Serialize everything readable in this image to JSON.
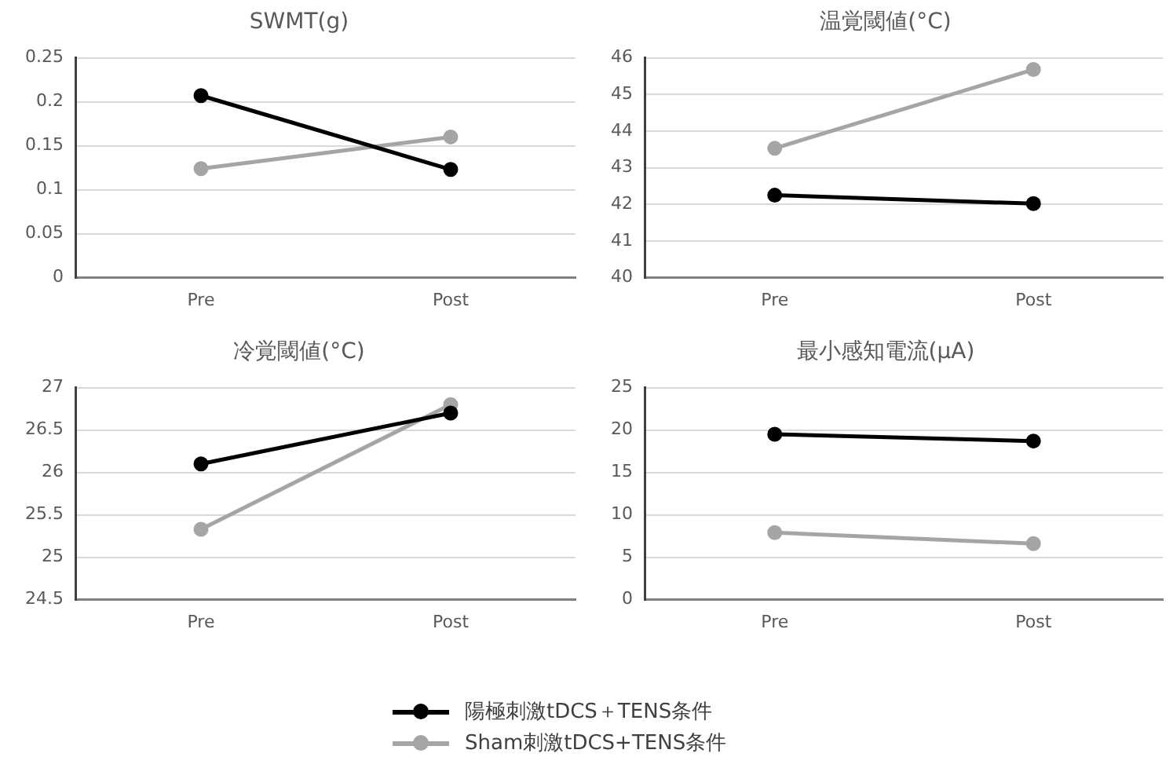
{
  "chart_data": [
    {
      "type": "line",
      "title": "SWMT(g)",
      "categories": [
        "Pre",
        "Post"
      ],
      "ylim": [
        0,
        0.25
      ],
      "yticks": [
        0,
        0.05,
        0.1,
        0.15,
        0.2,
        0.25
      ],
      "grid": "y",
      "marker": "circle",
      "legend": "bottom",
      "series": [
        {
          "name": "陽極刺激tDCS＋TENS条件",
          "color": "#000000",
          "values": [
            0.207,
            0.123
          ]
        },
        {
          "name": "Sham刺激tDCS+TENS条件",
          "color": "#a5a5a5",
          "values": [
            0.124,
            0.16
          ]
        }
      ]
    },
    {
      "type": "line",
      "title": "温覚閾値(°C)",
      "categories": [
        "Pre",
        "Post"
      ],
      "ylim": [
        40,
        46
      ],
      "yticks": [
        40,
        41,
        42,
        43,
        44,
        45,
        46
      ],
      "grid": "y",
      "marker": "circle",
      "series": [
        {
          "color": "#000000",
          "values": [
            42.25,
            42.02
          ]
        },
        {
          "color": "#a5a5a5",
          "values": [
            43.53,
            45.68
          ]
        }
      ]
    },
    {
      "type": "line",
      "title": "冷覚閾値(°C)",
      "categories": [
        "Pre",
        "Post"
      ],
      "ylim": [
        24.5,
        27
      ],
      "yticks": [
        24.5,
        25,
        25.5,
        26,
        26.5,
        27
      ],
      "grid": "y",
      "marker": "circle",
      "series": [
        {
          "color": "#000000",
          "values": [
            26.1,
            26.7
          ]
        },
        {
          "color": "#a5a5a5",
          "values": [
            25.33,
            26.8
          ]
        }
      ]
    },
    {
      "type": "line",
      "title": "最小感知電流(μA)",
      "categories": [
        "Pre",
        "Post"
      ],
      "ylim": [
        0,
        25
      ],
      "yticks": [
        0,
        5,
        10,
        15,
        20,
        25
      ],
      "grid": "y",
      "marker": "circle",
      "series": [
        {
          "color": "#000000",
          "values": [
            19.5,
            18.7
          ]
        },
        {
          "color": "#a5a5a5",
          "values": [
            7.9,
            6.6
          ]
        }
      ]
    }
  ]
}
